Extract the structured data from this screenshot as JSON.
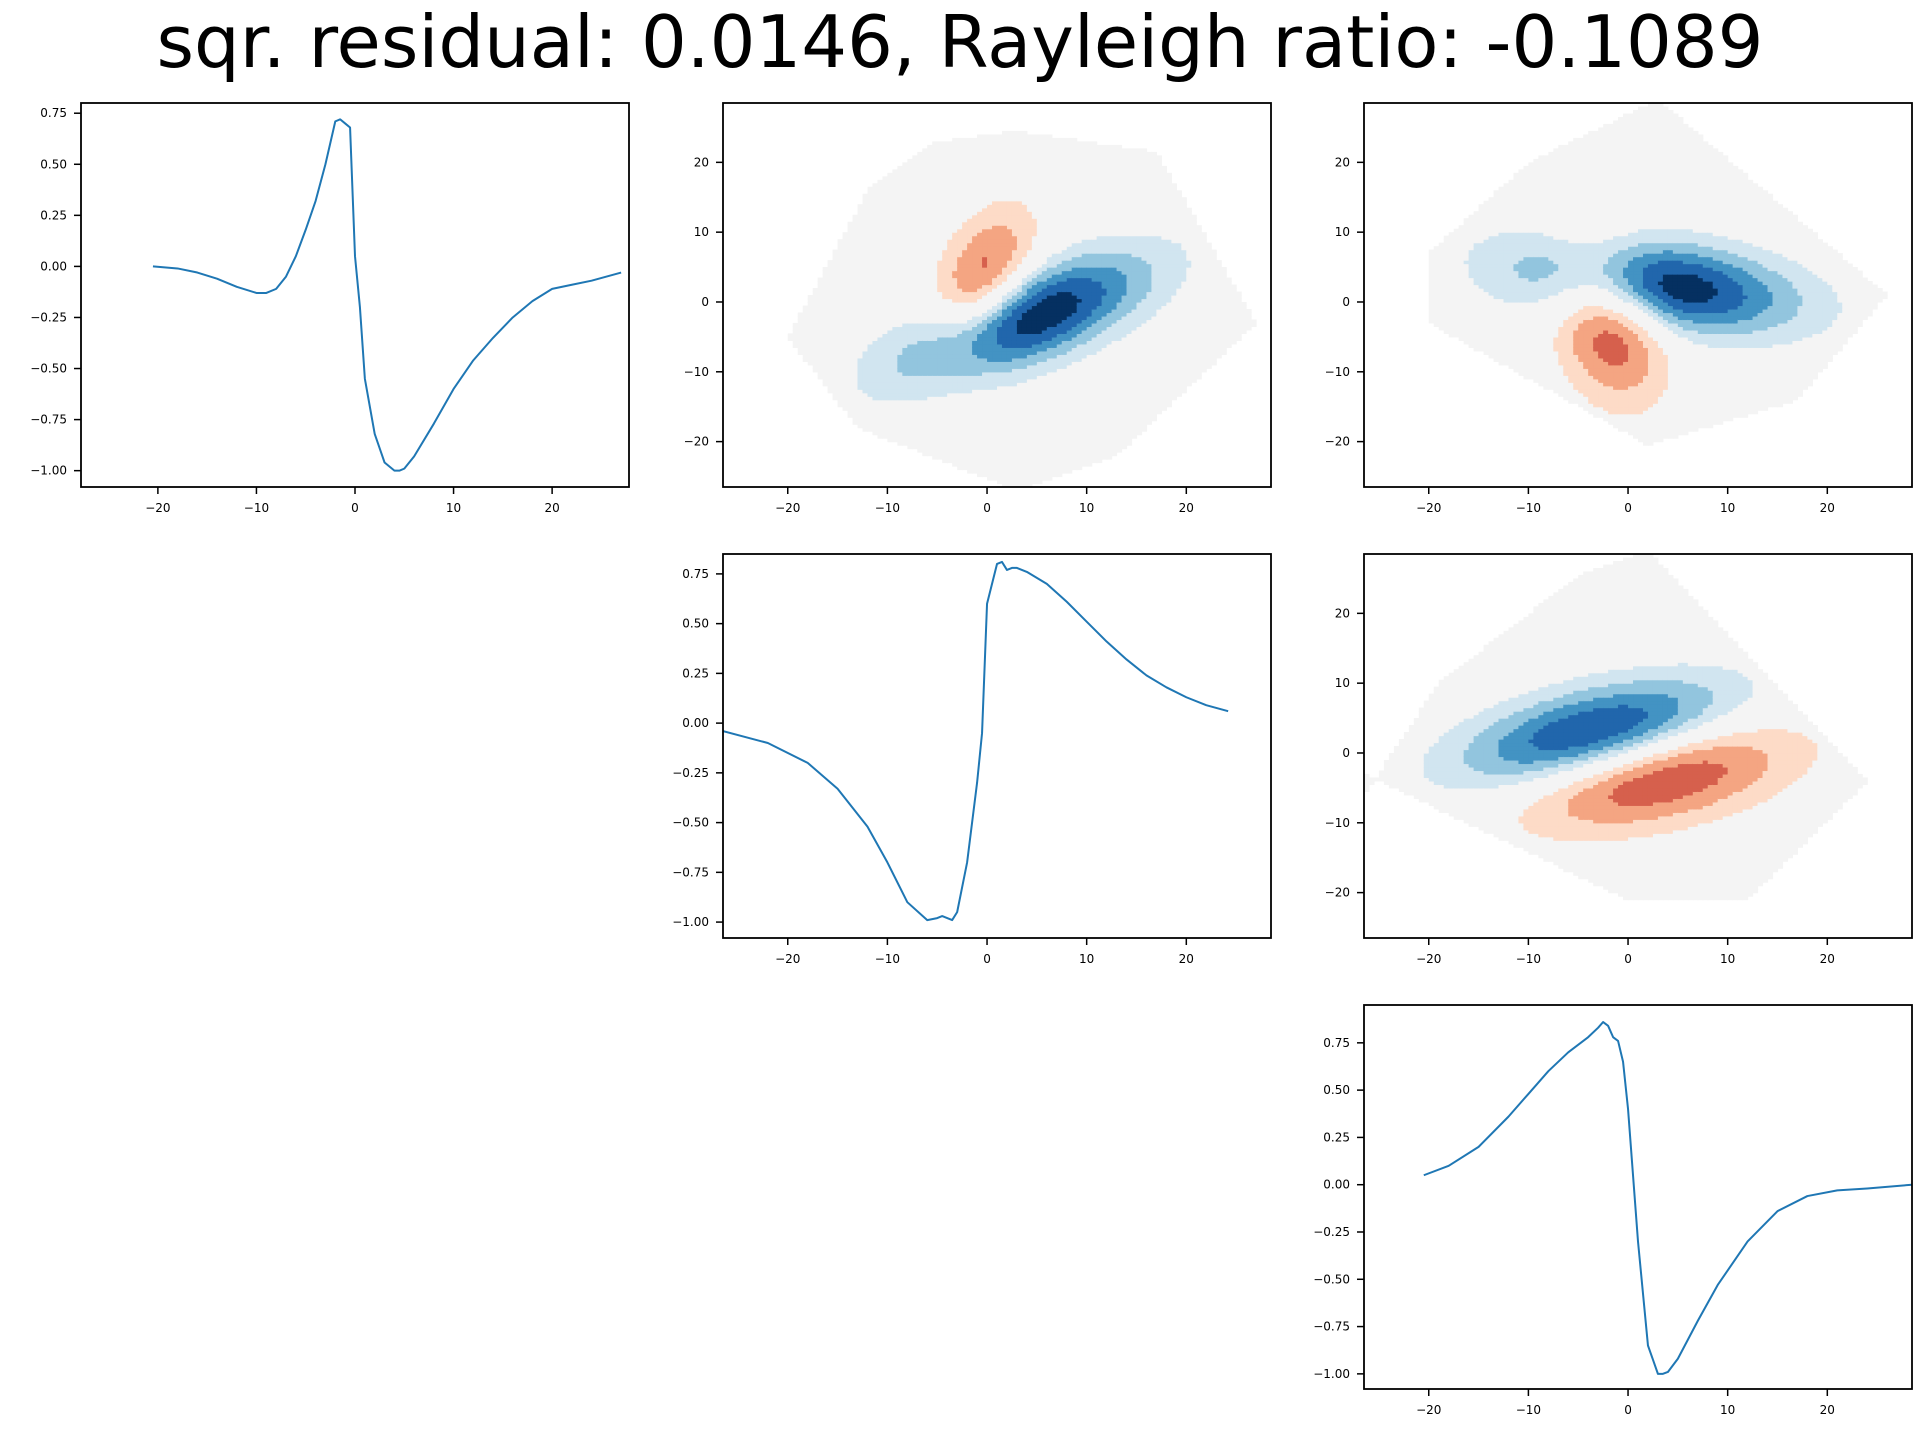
{
  "title": "sqr. residual: 0.0146, Rayleigh ratio: -0.1089",
  "chart_data": [
    {
      "panel": "row1-col1",
      "type": "line",
      "xlim": [
        -27.8,
        27.8
      ],
      "ylim": [
        -1.08,
        0.8
      ],
      "xticks": [
        -20,
        -10,
        0,
        10,
        20
      ],
      "yticks": [
        -1.0,
        -0.75,
        -0.5,
        -0.25,
        0.0,
        0.25,
        0.5,
        0.75
      ],
      "line_color": "#1f77b4",
      "series": [
        {
          "x": [
            -20.5,
            -18,
            -16,
            -14,
            -12,
            -10,
            -9,
            -8,
            -7,
            -6,
            -5,
            -4,
            -3,
            -2,
            -1.5,
            -1,
            -0.5,
            0,
            0.5,
            1,
            2,
            3,
            4,
            4.5,
            5,
            6,
            8,
            10,
            12,
            14,
            16,
            18,
            20,
            22,
            24,
            27
          ],
          "y": [
            0.0,
            -0.01,
            -0.03,
            -0.06,
            -0.1,
            -0.13,
            -0.13,
            -0.11,
            -0.05,
            0.05,
            0.18,
            0.32,
            0.5,
            0.71,
            0.72,
            0.7,
            0.68,
            0.05,
            -0.2,
            -0.55,
            -0.82,
            -0.96,
            -1.0,
            -1.0,
            -0.99,
            -0.93,
            -0.77,
            -0.6,
            -0.46,
            -0.35,
            -0.25,
            -0.17,
            -0.11,
            -0.09,
            -0.07,
            -0.03
          ]
        }
      ]
    },
    {
      "panel": "row1-col2",
      "type": "heatmap",
      "xlim": [
        -26.5,
        28.5
      ],
      "ylim": [
        -26.5,
        28.5
      ],
      "xticks": [
        -20,
        -10,
        0,
        10,
        20
      ],
      "yticks": [
        -20,
        -10,
        0,
        10,
        20
      ],
      "colormap": "RdBu",
      "levels": [
        "#b2182b",
        "#d6604d",
        "#f4a582",
        "#fddbc7",
        "#f4f4f4",
        "#d1e5f0",
        "#92c5de",
        "#4393c3",
        "#2166ac",
        "#053061"
      ],
      "hull": [
        [
          -20,
          -5
        ],
        [
          -12,
          16
        ],
        [
          -5,
          23
        ],
        [
          3,
          24.5
        ],
        [
          17,
          21.5
        ],
        [
          27,
          -3
        ],
        [
          13,
          -22
        ],
        [
          3,
          -27
        ],
        [
          -13,
          -18
        ]
      ],
      "lobes": [
        {
          "sign": 1,
          "amp": 0.72,
          "cx": -0.5,
          "cy": 2.5,
          "sx": 3.2,
          "sy": 7.5,
          "rot": -15
        },
        {
          "sign": -1,
          "amp": 1.0,
          "cx": 3.5,
          "cy": -2.5,
          "sx": 10,
          "sy": 4.2,
          "rot": 32
        }
      ]
    },
    {
      "panel": "row1-col3",
      "type": "heatmap",
      "xlim": [
        -26.5,
        28.5
      ],
      "ylim": [
        -26.5,
        28.5
      ],
      "xticks": [
        -20,
        -10,
        0,
        10,
        20
      ],
      "yticks": [
        -20,
        -10,
        0,
        10,
        20
      ],
      "colormap": "RdBu",
      "levels": [
        "#b2182b",
        "#d6604d",
        "#f4a582",
        "#fddbc7",
        "#f4f4f4",
        "#d1e5f0",
        "#92c5de",
        "#4393c3",
        "#2166ac",
        "#053061"
      ],
      "hull": [
        [
          -20,
          7
        ],
        [
          -10,
          20
        ],
        [
          3,
          29
        ],
        [
          26,
          1
        ],
        [
          17,
          -14
        ],
        [
          2,
          -20.5
        ],
        [
          -20,
          -3
        ]
      ],
      "lobes": [
        {
          "sign": -1,
          "amp": 1.0,
          "cx": 2.5,
          "cy": 2.5,
          "sx": 10,
          "sy": 4.5,
          "rot": -12
        },
        {
          "sign": 1,
          "amp": 0.8,
          "cx": -2,
          "cy": -2.5,
          "sx": 3.8,
          "sy": 8,
          "rot": 10
        }
      ]
    },
    {
      "panel": "row2-col2",
      "type": "line",
      "xlim": [
        -26.5,
        28.5
      ],
      "ylim": [
        -1.08,
        0.85
      ],
      "xticks": [
        -20,
        -10,
        0,
        10,
        20
      ],
      "yticks": [
        -1.0,
        -0.75,
        -0.5,
        -0.25,
        0.0,
        0.25,
        0.5,
        0.75
      ],
      "line_color": "#1f77b4",
      "series": [
        {
          "x": [
            -26.5,
            -22,
            -18,
            -15,
            -12,
            -10,
            -8,
            -6,
            -5,
            -4.5,
            -4,
            -3.5,
            -3,
            -2,
            -1,
            -0.5,
            0,
            1,
            1.5,
            2,
            2.5,
            3,
            4,
            6,
            8,
            10,
            12,
            14,
            16,
            18,
            20,
            22,
            24.2
          ],
          "y": [
            -0.04,
            -0.1,
            -0.2,
            -0.33,
            -0.52,
            -0.7,
            -0.9,
            -0.99,
            -0.98,
            -0.97,
            -0.98,
            -0.99,
            -0.95,
            -0.7,
            -0.3,
            -0.05,
            0.6,
            0.8,
            0.81,
            0.77,
            0.78,
            0.78,
            0.76,
            0.7,
            0.61,
            0.51,
            0.41,
            0.32,
            0.24,
            0.18,
            0.13,
            0.09,
            0.06
          ]
        }
      ]
    },
    {
      "panel": "row2-col3",
      "type": "heatmap",
      "xlim": [
        -26.5,
        28.5
      ],
      "ylim": [
        -26.5,
        28.5
      ],
      "xticks": [
        -20,
        -10,
        0,
        10,
        20
      ],
      "yticks": [
        -20,
        -10,
        0,
        10,
        20
      ],
      "colormap": "RdBu",
      "levels": [
        "#b2182b",
        "#d6604d",
        "#f4a582",
        "#fddbc7",
        "#f4f4f4",
        "#d1e5f0",
        "#92c5de",
        "#4393c3",
        "#2166ac",
        "#053061"
      ],
      "hull": [
        [
          -26.5,
          -6
        ],
        [
          -19,
          10
        ],
        [
          -5,
          25.5
        ],
        [
          2,
          29
        ],
        [
          24,
          -4
        ],
        [
          12,
          -21
        ],
        [
          0,
          -21
        ],
        [
          -26.5,
          -3
        ]
      ],
      "lobes": [
        {
          "sign": -1,
          "amp": 1.0,
          "cx": -3,
          "cy": 2.5,
          "sx": 10,
          "sy": 4.5,
          "rot": 20
        },
        {
          "sign": 1,
          "amp": 0.85,
          "cx": 2.5,
          "cy": -3,
          "sx": 10,
          "sy": 4.8,
          "rot": 18
        }
      ]
    },
    {
      "panel": "row3-col3",
      "type": "line",
      "xlim": [
        -26.5,
        28.5
      ],
      "ylim": [
        -1.08,
        0.95
      ],
      "xticks": [
        -20,
        -10,
        0,
        10,
        20
      ],
      "yticks": [
        -1.0,
        -0.75,
        -0.5,
        -0.25,
        0.0,
        0.25,
        0.5,
        0.75
      ],
      "line_color": "#1f77b4",
      "series": [
        {
          "x": [
            -20.5,
            -18,
            -15,
            -12,
            -10,
            -8,
            -6,
            -4,
            -3,
            -2.5,
            -2,
            -1.5,
            -1,
            -0.5,
            0,
            1,
            2,
            3,
            3.5,
            4,
            5,
            7,
            9,
            12,
            15,
            18,
            21,
            24,
            28.5
          ],
          "y": [
            0.05,
            0.1,
            0.2,
            0.36,
            0.48,
            0.6,
            0.7,
            0.78,
            0.83,
            0.86,
            0.84,
            0.78,
            0.76,
            0.65,
            0.4,
            -0.3,
            -0.85,
            -1.0,
            -1.0,
            -0.99,
            -0.92,
            -0.72,
            -0.53,
            -0.3,
            -0.14,
            -0.06,
            -0.03,
            -0.02,
            0.0
          ]
        }
      ]
    }
  ]
}
